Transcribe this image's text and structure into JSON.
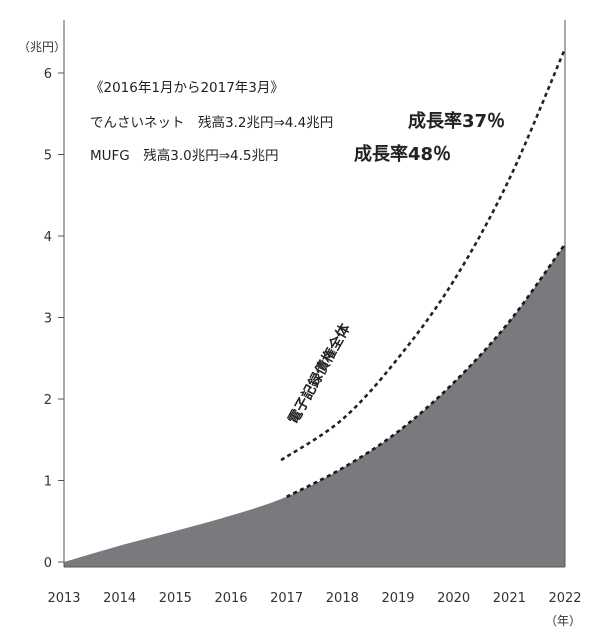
{
  "chart_data": {
    "type": "area",
    "y_unit_label": "（兆円）",
    "x_unit_label": "（年）",
    "x_ticks": [
      "2013",
      "2014",
      "2015",
      "2016",
      "2017",
      "2018",
      "2019",
      "2020",
      "2021",
      "2022"
    ],
    "y_ticks": [
      "0",
      "1",
      "2",
      "3",
      "4",
      "5",
      "6"
    ],
    "xlim": [
      2013,
      2022
    ],
    "ylim": [
      0,
      6.5
    ],
    "series": [
      {
        "style": "filled-area",
        "color": "#7a7a7e",
        "x": [
          2013,
          2014,
          2015,
          2016,
          2017,
          2018,
          2019,
          2020,
          2021,
          2022
        ],
        "y": [
          0.0,
          0.2,
          0.38,
          0.57,
          0.8,
          1.15,
          1.6,
          2.2,
          2.95,
          3.9
        ],
        "line_style_from": 2017,
        "line_style": "dotted"
      },
      {
        "name": "電子記録債権全体",
        "style": "dotted-line",
        "color": "#222222",
        "x": [
          2016.9,
          2018,
          2019,
          2020,
          2021,
          2022
        ],
        "y": [
          1.25,
          1.75,
          2.5,
          3.45,
          4.7,
          6.3
        ]
      }
    ],
    "annotations": {
      "period": "《2016年1月から2017年3月》",
      "line1_text": "でんさいネット　残高3.2兆円⇒4.4兆円",
      "line1_growth": "成長率37％",
      "line2_text": "MUFG　残高3.0兆円⇒4.5兆円",
      "line2_growth": "成長率48％"
    }
  }
}
